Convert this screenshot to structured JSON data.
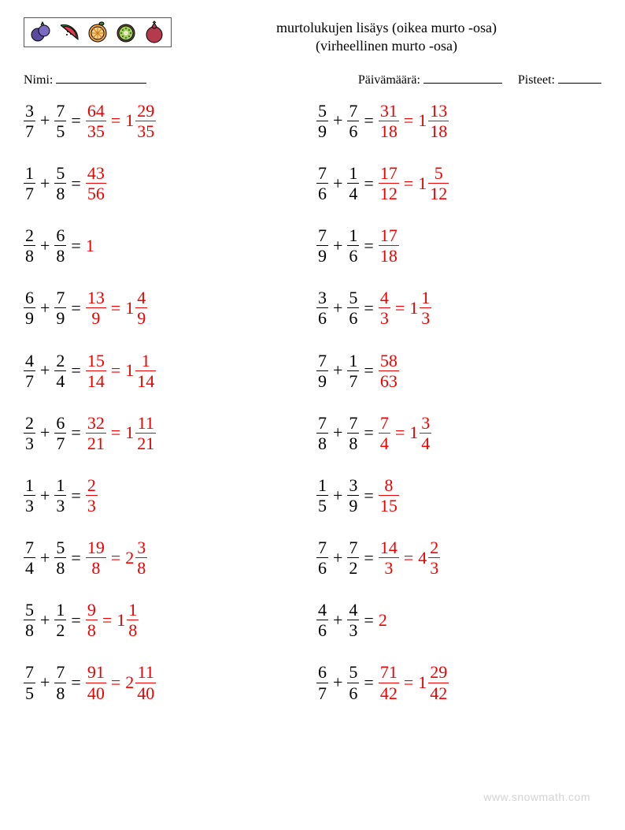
{
  "title_line1": "murtolukujen lisäys (oikea murto -osa)",
  "title_line2": "(virheellinen murto -osa)",
  "labels": {
    "name": "Nimi:",
    "date": "Päivämäärä:",
    "score": "Pisteet:"
  },
  "underline_widths": {
    "name": 115,
    "date": 100,
    "score": 55
  },
  "answer_color": "#ee0000",
  "text_color": "#000000",
  "fontsize": 22,
  "operator": "+",
  "equals": "=",
  "footer": "www.snowmath.com",
  "columns": [
    [
      {
        "a": {
          "n": 3,
          "d": 7
        },
        "b": {
          "n": 7,
          "d": 5
        },
        "r1": {
          "n": 64,
          "d": 35
        },
        "r2": {
          "w": 1,
          "n": 29,
          "d": 35
        }
      },
      {
        "a": {
          "n": 1,
          "d": 7
        },
        "b": {
          "n": 5,
          "d": 8
        },
        "r1": {
          "n": 43,
          "d": 56
        }
      },
      {
        "a": {
          "n": 2,
          "d": 8
        },
        "b": {
          "n": 6,
          "d": 8
        },
        "rW": 1
      },
      {
        "a": {
          "n": 6,
          "d": 9
        },
        "b": {
          "n": 7,
          "d": 9
        },
        "r1": {
          "n": 13,
          "d": 9
        },
        "r2": {
          "w": 1,
          "n": 4,
          "d": 9
        }
      },
      {
        "a": {
          "n": 4,
          "d": 7
        },
        "b": {
          "n": 2,
          "d": 4
        },
        "r1": {
          "n": 15,
          "d": 14
        },
        "r2": {
          "w": 1,
          "n": 1,
          "d": 14
        }
      },
      {
        "a": {
          "n": 2,
          "d": 3
        },
        "b": {
          "n": 6,
          "d": 7
        },
        "r1": {
          "n": 32,
          "d": 21
        },
        "r2": {
          "w": 1,
          "n": 11,
          "d": 21
        }
      },
      {
        "a": {
          "n": 1,
          "d": 3
        },
        "b": {
          "n": 1,
          "d": 3
        },
        "r1": {
          "n": 2,
          "d": 3
        }
      },
      {
        "a": {
          "n": 7,
          "d": 4
        },
        "b": {
          "n": 5,
          "d": 8
        },
        "r1": {
          "n": 19,
          "d": 8
        },
        "r2": {
          "w": 2,
          "n": 3,
          "d": 8
        }
      },
      {
        "a": {
          "n": 5,
          "d": 8
        },
        "b": {
          "n": 1,
          "d": 2
        },
        "r1": {
          "n": 9,
          "d": 8
        },
        "r2": {
          "w": 1,
          "n": 1,
          "d": 8
        }
      },
      {
        "a": {
          "n": 7,
          "d": 5
        },
        "b": {
          "n": 7,
          "d": 8
        },
        "r1": {
          "n": 91,
          "d": 40
        },
        "r2": {
          "w": 2,
          "n": 11,
          "d": 40
        }
      }
    ],
    [
      {
        "a": {
          "n": 5,
          "d": 9
        },
        "b": {
          "n": 7,
          "d": 6
        },
        "r1": {
          "n": 31,
          "d": 18
        },
        "r2": {
          "w": 1,
          "n": 13,
          "d": 18
        }
      },
      {
        "a": {
          "n": 7,
          "d": 6
        },
        "b": {
          "n": 1,
          "d": 4
        },
        "r1": {
          "n": 17,
          "d": 12
        },
        "r2": {
          "w": 1,
          "n": 5,
          "d": 12
        }
      },
      {
        "a": {
          "n": 7,
          "d": 9
        },
        "b": {
          "n": 1,
          "d": 6
        },
        "r1": {
          "n": 17,
          "d": 18
        }
      },
      {
        "a": {
          "n": 3,
          "d": 6
        },
        "b": {
          "n": 5,
          "d": 6
        },
        "r1": {
          "n": 4,
          "d": 3
        },
        "r2": {
          "w": 1,
          "n": 1,
          "d": 3
        }
      },
      {
        "a": {
          "n": 7,
          "d": 9
        },
        "b": {
          "n": 1,
          "d": 7
        },
        "r1": {
          "n": 58,
          "d": 63
        }
      },
      {
        "a": {
          "n": 7,
          "d": 8
        },
        "b": {
          "n": 7,
          "d": 8
        },
        "r1": {
          "n": 7,
          "d": 4
        },
        "r2": {
          "w": 1,
          "n": 3,
          "d": 4
        }
      },
      {
        "a": {
          "n": 1,
          "d": 5
        },
        "b": {
          "n": 3,
          "d": 9
        },
        "r1": {
          "n": 8,
          "d": 15
        }
      },
      {
        "a": {
          "n": 7,
          "d": 6
        },
        "b": {
          "n": 7,
          "d": 2
        },
        "r1": {
          "n": 14,
          "d": 3
        },
        "r2": {
          "w": 4,
          "n": 2,
          "d": 3
        }
      },
      {
        "a": {
          "n": 4,
          "d": 6
        },
        "b": {
          "n": 4,
          "d": 3
        },
        "rW": 2
      },
      {
        "a": {
          "n": 6,
          "d": 7
        },
        "b": {
          "n": 5,
          "d": 6
        },
        "r1": {
          "n": 71,
          "d": 42
        },
        "r2": {
          "w": 1,
          "n": 29,
          "d": 42
        }
      }
    ]
  ],
  "fruits": [
    {
      "name": "blueberry-icon",
      "type": "blueberry"
    },
    {
      "name": "watermelon-icon",
      "type": "watermelon"
    },
    {
      "name": "orange-icon",
      "type": "orange"
    },
    {
      "name": "kiwi-icon",
      "type": "kiwi"
    },
    {
      "name": "pomegranate-icon",
      "type": "pomegranate"
    }
  ]
}
